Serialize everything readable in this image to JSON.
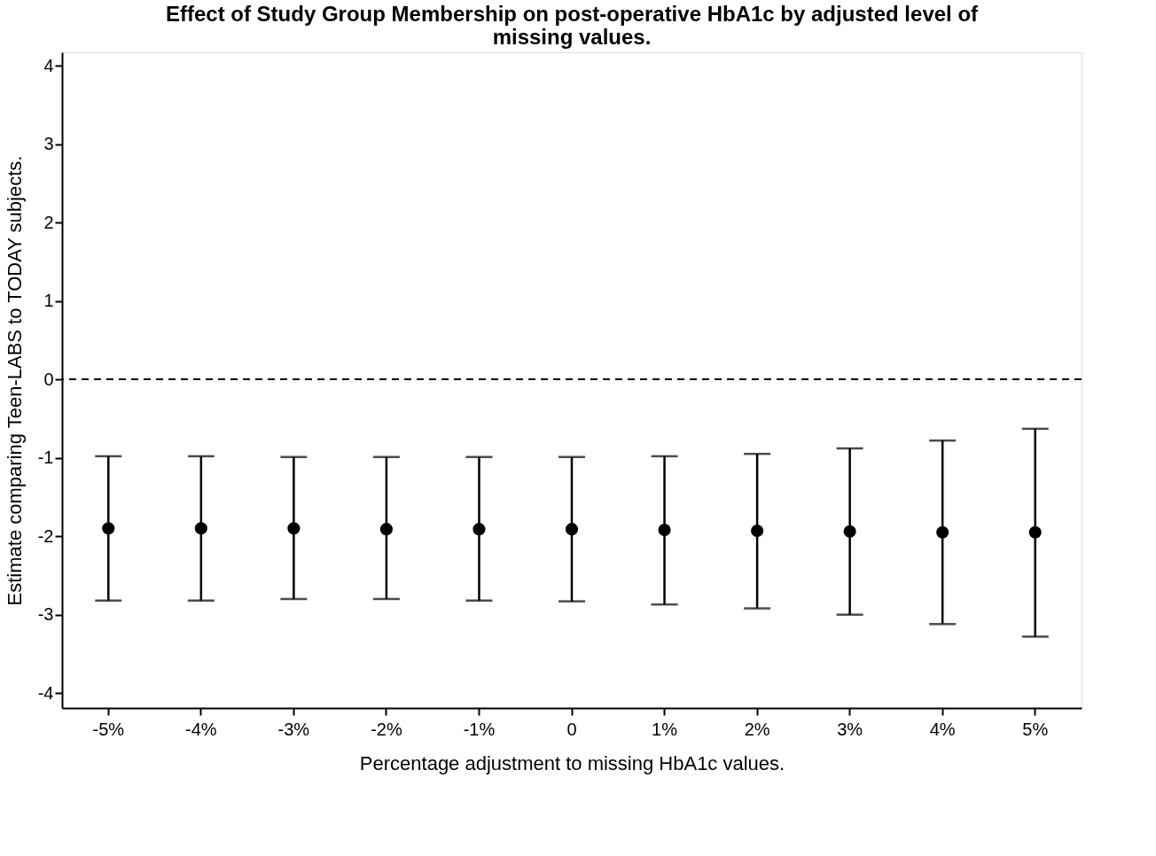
{
  "chart_data": {
    "type": "scatter",
    "title": [
      "Effect of Study Group Membership on post-operative HbA1c by adjusted level of",
      "missing values."
    ],
    "xlabel": "Percentage adjustment to missing HbA1c values.",
    "ylabel": "Estimate comparing Teen-LABS to TODAY subjects.",
    "categories": [
      "-5%",
      "-4%",
      "-3%",
      "-2%",
      "-1%",
      "0",
      "1%",
      "2%",
      "3%",
      "4%",
      "5%"
    ],
    "series": [
      {
        "color": "#000000",
        "values": [
          -1.9,
          -1.9,
          -1.9,
          -1.91,
          -1.91,
          -1.91,
          -1.92,
          -1.93,
          -1.94,
          -1.95,
          -1.95
        ],
        "errors": [
          [
            -2.82,
            -0.98
          ],
          [
            -2.82,
            -0.98
          ],
          [
            -2.8,
            -0.99
          ],
          [
            -2.8,
            -0.99
          ],
          [
            -2.82,
            -0.99
          ],
          [
            -2.83,
            -0.99
          ],
          [
            -2.87,
            -0.98
          ],
          [
            -2.92,
            -0.95
          ],
          [
            -3.0,
            -0.88
          ],
          [
            -3.12,
            -0.78
          ],
          [
            -3.28,
            -0.63
          ]
        ]
      }
    ],
    "ylim": [
      -4.19,
      4.17
    ],
    "yticks": [
      -4,
      -3,
      -2,
      -1,
      0,
      1,
      2,
      3,
      4
    ],
    "ref_lines": [
      {
        "axis": "y",
        "value": 0,
        "line_style": "dashed",
        "color": "#000000"
      }
    ],
    "marker": "circle",
    "grid": false
  }
}
